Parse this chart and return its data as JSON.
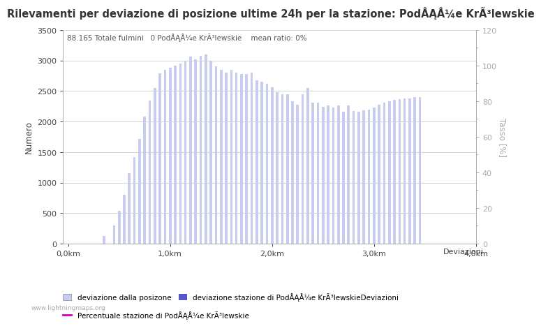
{
  "title": "Rilevamenti per deviazione di posizione ultime 24h per la stazione: PodÅĄÅ¼e KrÃ³lewskie",
  "subtitle": "88.165 Totale fulmini   0 PodÅĄÅ¼e KrÃ³lewskie    mean ratio: 0%",
  "ylabel_left": "Numero",
  "ylabel_right": "Tasso [%]",
  "xlabel_right": "Deviazioni",
  "ylim_left": [
    0,
    3500
  ],
  "ylim_right": [
    0,
    120
  ],
  "bar_color_light": "#c8ccee",
  "bar_color_dark": "#5555cc",
  "line_color": "#cc00cc",
  "xtick_labels": [
    "0,0km",
    "1,0km",
    "2,0km",
    "3,0km",
    "4,0km"
  ],
  "xtick_positions": [
    0,
    20,
    40,
    60,
    80
  ],
  "yticks_left": [
    0,
    500,
    1000,
    1500,
    2000,
    2500,
    3000,
    3500
  ],
  "yticks_right": [
    0,
    20,
    40,
    60,
    80,
    100,
    120
  ],
  "legend_label1": "deviazione dalla posizone",
  "legend_label2": "deviazione stazione di PodÅĄÅ¼e KrÃ³lewskie",
  "legend_label3": "Percentuale stazione di PodÅĄÅ¼e KrÃ³lewskie",
  "watermark": "www.lightningmaps.org",
  "bar_values": [
    0,
    0,
    0,
    0,
    0,
    0,
    0,
    120,
    0,
    300,
    540,
    800,
    1150,
    1420,
    1720,
    2080,
    2340,
    2550,
    2790,
    2850,
    2880,
    2920,
    2950,
    2980,
    3060,
    3020,
    3080,
    3100,
    3000,
    2900,
    2850,
    2800,
    2850,
    2800,
    2780,
    2780,
    2800,
    2680,
    2650,
    2620,
    2560,
    2480,
    2450,
    2450,
    2330,
    2280,
    2450,
    2550,
    2310,
    2310,
    2240,
    2270,
    2230,
    2260,
    2160,
    2270,
    2170,
    2160,
    2190,
    2200,
    2230,
    2280,
    2310,
    2330,
    2360,
    2370,
    2380,
    2380,
    2400,
    2400
  ],
  "dot_values": [
    0,
    0,
    0,
    0,
    0,
    0,
    0,
    5,
    0,
    5,
    5,
    5,
    5,
    5,
    5,
    5,
    5,
    5,
    5,
    5,
    5,
    5,
    5,
    5,
    5,
    5,
    5,
    5,
    5,
    5,
    5,
    5,
    5,
    5,
    5,
    5,
    5,
    5,
    5,
    5,
    5,
    5,
    5,
    5,
    5,
    5,
    5,
    5,
    5,
    5,
    5,
    5,
    5,
    5,
    5,
    5,
    5,
    5,
    5,
    5,
    5,
    5,
    5,
    5,
    5,
    5,
    5,
    5,
    5,
    5
  ],
  "num_bars": 70,
  "bar_width": 0.5,
  "background_color": "#ffffff",
  "grid_color": "#cccccc",
  "title_fontsize": 10.5,
  "label_fontsize": 8.5,
  "tick_fontsize": 8,
  "subtitle_fontsize": 7.5
}
